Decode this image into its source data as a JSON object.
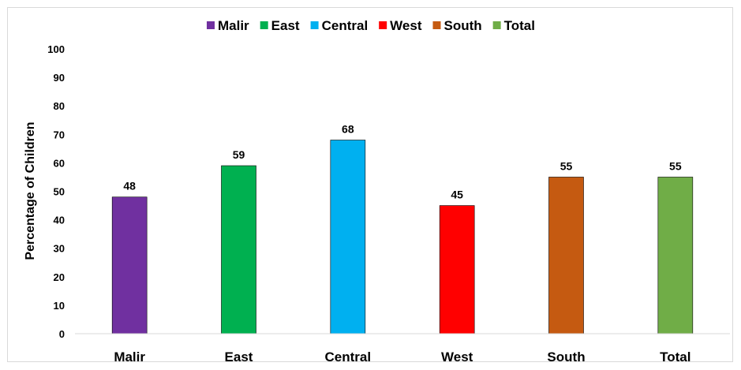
{
  "chart_data": {
    "type": "bar",
    "title": "",
    "xlabel": "",
    "ylabel": "Percentage of Children",
    "categories": [
      "Malir",
      "East",
      "Central",
      "West",
      "South",
      "Total"
    ],
    "values": [
      48,
      59,
      68,
      45,
      55,
      55
    ],
    "data_labels": [
      "48",
      "59",
      "68",
      "45",
      "55",
      "55"
    ],
    "colors": [
      "#7030a0",
      "#00b050",
      "#00b0f0",
      "#ff0000",
      "#c55a11",
      "#70ad47"
    ],
    "ylim": [
      0,
      100
    ],
    "yticks": [
      0,
      10,
      20,
      30,
      40,
      50,
      60,
      70,
      80,
      90,
      100
    ],
    "ytick_labels": [
      "0",
      "10",
      "20",
      "30",
      "40",
      "50",
      "60",
      "70",
      "80",
      "90",
      "100"
    ],
    "legend": {
      "position": "top",
      "entries": [
        "Malir",
        "East",
        "Central",
        "West",
        "South",
        "Total"
      ]
    },
    "grid": false
  }
}
